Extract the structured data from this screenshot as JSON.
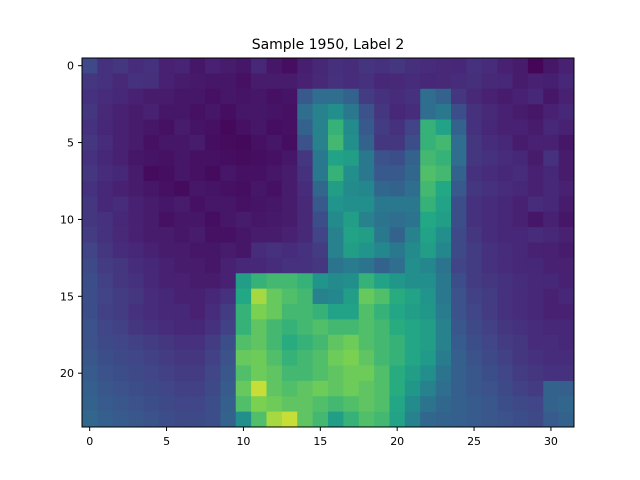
{
  "chart_data": {
    "type": "heatmap",
    "title": "Sample 1950, Label 2",
    "xlabel": "",
    "ylabel": "",
    "n_cols": 32,
    "n_rows": 24,
    "xlim": [
      -0.5,
      31.5
    ],
    "ylim": [
      23.5,
      -0.5
    ],
    "x_ticks": [
      0,
      5,
      10,
      15,
      20,
      25,
      30
    ],
    "y_ticks": [
      0,
      5,
      10,
      15,
      20
    ],
    "grid": false,
    "colormap": "viridis",
    "value_range": [
      0,
      1
    ],
    "values": [
      [
        0.27,
        0.18,
        0.2,
        0.16,
        0.18,
        0.12,
        0.13,
        0.08,
        0.12,
        0.1,
        0.08,
        0.14,
        0.08,
        0.05,
        0.11,
        0.14,
        0.17,
        0.16,
        0.19,
        0.18,
        0.2,
        0.17,
        0.16,
        0.15,
        0.14,
        0.18,
        0.16,
        0.12,
        0.1,
        0.02,
        0.08,
        0.12
      ],
      [
        0.2,
        0.18,
        0.15,
        0.18,
        0.17,
        0.12,
        0.1,
        0.09,
        0.08,
        0.08,
        0.06,
        0.1,
        0.1,
        0.1,
        0.12,
        0.15,
        0.18,
        0.16,
        0.18,
        0.14,
        0.15,
        0.16,
        0.14,
        0.15,
        0.16,
        0.17,
        0.15,
        0.14,
        0.1,
        0.12,
        0.11,
        0.14
      ],
      [
        0.18,
        0.16,
        0.14,
        0.12,
        0.1,
        0.1,
        0.08,
        0.08,
        0.06,
        0.08,
        0.07,
        0.08,
        0.06,
        0.07,
        0.35,
        0.45,
        0.45,
        0.4,
        0.22,
        0.18,
        0.16,
        0.18,
        0.45,
        0.4,
        0.2,
        0.15,
        0.12,
        0.1,
        0.12,
        0.14,
        0.08,
        0.12
      ],
      [
        0.2,
        0.15,
        0.12,
        0.1,
        0.12,
        0.08,
        0.08,
        0.06,
        0.08,
        0.05,
        0.08,
        0.08,
        0.07,
        0.06,
        0.45,
        0.55,
        0.62,
        0.5,
        0.32,
        0.2,
        0.14,
        0.16,
        0.45,
        0.5,
        0.3,
        0.18,
        0.15,
        0.12,
        0.1,
        0.08,
        0.12,
        0.14
      ],
      [
        0.18,
        0.14,
        0.12,
        0.1,
        0.08,
        0.06,
        0.1,
        0.07,
        0.06,
        0.03,
        0.06,
        0.08,
        0.05,
        0.06,
        0.4,
        0.55,
        0.78,
        0.6,
        0.35,
        0.22,
        0.18,
        0.25,
        0.78,
        0.72,
        0.4,
        0.18,
        0.14,
        0.12,
        0.12,
        0.1,
        0.14,
        0.12
      ],
      [
        0.2,
        0.16,
        0.12,
        0.1,
        0.06,
        0.08,
        0.08,
        0.1,
        0.05,
        0.04,
        0.03,
        0.06,
        0.08,
        0.05,
        0.32,
        0.55,
        0.8,
        0.62,
        0.4,
        0.2,
        0.2,
        0.3,
        0.78,
        0.8,
        0.45,
        0.2,
        0.16,
        0.14,
        0.1,
        0.12,
        0.12,
        0.08
      ],
      [
        0.18,
        0.14,
        0.12,
        0.08,
        0.07,
        0.06,
        0.08,
        0.06,
        0.06,
        0.05,
        0.04,
        0.05,
        0.06,
        0.08,
        0.2,
        0.5,
        0.72,
        0.7,
        0.5,
        0.32,
        0.3,
        0.4,
        0.8,
        0.78,
        0.45,
        0.2,
        0.18,
        0.16,
        0.14,
        0.1,
        0.18,
        0.1
      ],
      [
        0.2,
        0.16,
        0.14,
        0.1,
        0.04,
        0.05,
        0.08,
        0.06,
        0.04,
        0.08,
        0.06,
        0.06,
        0.08,
        0.1,
        0.18,
        0.5,
        0.78,
        0.62,
        0.5,
        0.35,
        0.35,
        0.42,
        0.82,
        0.8,
        0.4,
        0.18,
        0.16,
        0.14,
        0.16,
        0.12,
        0.14,
        0.1
      ],
      [
        0.18,
        0.14,
        0.12,
        0.1,
        0.08,
        0.06,
        0.04,
        0.08,
        0.07,
        0.06,
        0.05,
        0.08,
        0.06,
        0.1,
        0.16,
        0.42,
        0.7,
        0.6,
        0.58,
        0.42,
        0.4,
        0.45,
        0.8,
        0.75,
        0.35,
        0.2,
        0.18,
        0.16,
        0.14,
        0.12,
        0.14,
        0.12
      ],
      [
        0.2,
        0.14,
        0.16,
        0.12,
        0.1,
        0.08,
        0.1,
        0.06,
        0.08,
        0.08,
        0.06,
        0.07,
        0.08,
        0.1,
        0.15,
        0.35,
        0.65,
        0.62,
        0.62,
        0.5,
        0.5,
        0.5,
        0.78,
        0.72,
        0.3,
        0.18,
        0.16,
        0.14,
        0.12,
        0.16,
        0.14,
        0.1
      ],
      [
        0.2,
        0.18,
        0.14,
        0.12,
        0.1,
        0.06,
        0.08,
        0.08,
        0.05,
        0.08,
        0.1,
        0.08,
        0.09,
        0.1,
        0.15,
        0.3,
        0.6,
        0.7,
        0.55,
        0.48,
        0.45,
        0.48,
        0.75,
        0.7,
        0.3,
        0.18,
        0.16,
        0.14,
        0.12,
        0.08,
        0.12,
        0.08
      ],
      [
        0.22,
        0.18,
        0.15,
        0.12,
        0.1,
        0.1,
        0.08,
        0.1,
        0.06,
        0.06,
        0.08,
        0.1,
        0.1,
        0.12,
        0.15,
        0.25,
        0.55,
        0.72,
        0.7,
        0.5,
        0.4,
        0.55,
        0.72,
        0.62,
        0.28,
        0.2,
        0.16,
        0.14,
        0.14,
        0.16,
        0.14,
        0.12
      ],
      [
        0.25,
        0.2,
        0.16,
        0.14,
        0.12,
        0.1,
        0.1,
        0.08,
        0.08,
        0.1,
        0.08,
        0.16,
        0.18,
        0.16,
        0.18,
        0.22,
        0.55,
        0.7,
        0.65,
        0.58,
        0.5,
        0.6,
        0.7,
        0.58,
        0.28,
        0.22,
        0.18,
        0.16,
        0.14,
        0.12,
        0.12,
        0.1
      ],
      [
        0.28,
        0.22,
        0.2,
        0.16,
        0.14,
        0.12,
        0.1,
        0.1,
        0.08,
        0.12,
        0.14,
        0.14,
        0.16,
        0.18,
        0.18,
        0.2,
        0.48,
        0.52,
        0.48,
        0.4,
        0.45,
        0.62,
        0.58,
        0.48,
        0.25,
        0.22,
        0.18,
        0.16,
        0.14,
        0.14,
        0.12,
        0.12
      ],
      [
        0.3,
        0.24,
        0.2,
        0.18,
        0.14,
        0.12,
        0.12,
        0.1,
        0.1,
        0.12,
        0.7,
        0.78,
        0.8,
        0.8,
        0.78,
        0.65,
        0.6,
        0.62,
        0.78,
        0.72,
        0.66,
        0.62,
        0.62,
        0.5,
        0.3,
        0.22,
        0.2,
        0.18,
        0.16,
        0.14,
        0.14,
        0.12
      ],
      [
        0.3,
        0.25,
        0.22,
        0.2,
        0.16,
        0.14,
        0.12,
        0.12,
        0.14,
        0.18,
        0.75,
        0.92,
        0.85,
        0.82,
        0.8,
        0.55,
        0.58,
        0.7,
        0.85,
        0.82,
        0.76,
        0.72,
        0.65,
        0.5,
        0.32,
        0.24,
        0.22,
        0.18,
        0.16,
        0.14,
        0.12,
        0.14
      ],
      [
        0.3,
        0.24,
        0.22,
        0.18,
        0.16,
        0.14,
        0.14,
        0.12,
        0.16,
        0.22,
        0.78,
        0.88,
        0.85,
        0.8,
        0.8,
        0.78,
        0.72,
        0.72,
        0.82,
        0.78,
        0.74,
        0.7,
        0.66,
        0.52,
        0.32,
        0.26,
        0.22,
        0.18,
        0.16,
        0.14,
        0.12,
        0.12
      ],
      [
        0.32,
        0.26,
        0.24,
        0.2,
        0.18,
        0.16,
        0.14,
        0.14,
        0.18,
        0.24,
        0.78,
        0.84,
        0.8,
        0.78,
        0.8,
        0.82,
        0.8,
        0.8,
        0.82,
        0.8,
        0.76,
        0.74,
        0.7,
        0.55,
        0.34,
        0.28,
        0.24,
        0.2,
        0.18,
        0.16,
        0.14,
        0.14
      ],
      [
        0.32,
        0.28,
        0.26,
        0.24,
        0.22,
        0.2,
        0.18,
        0.18,
        0.22,
        0.3,
        0.82,
        0.84,
        0.8,
        0.76,
        0.78,
        0.8,
        0.84,
        0.86,
        0.82,
        0.8,
        0.78,
        0.74,
        0.7,
        0.55,
        0.36,
        0.3,
        0.26,
        0.22,
        0.2,
        0.16,
        0.16,
        0.14
      ],
      [
        0.34,
        0.3,
        0.28,
        0.26,
        0.24,
        0.22,
        0.2,
        0.2,
        0.24,
        0.32,
        0.85,
        0.86,
        0.82,
        0.78,
        0.8,
        0.82,
        0.86,
        0.88,
        0.84,
        0.8,
        0.78,
        0.74,
        0.68,
        0.52,
        0.38,
        0.32,
        0.28,
        0.24,
        0.2,
        0.18,
        0.16,
        0.16
      ],
      [
        0.36,
        0.32,
        0.3,
        0.28,
        0.26,
        0.24,
        0.22,
        0.22,
        0.26,
        0.34,
        0.82,
        0.86,
        0.84,
        0.8,
        0.8,
        0.82,
        0.84,
        0.86,
        0.86,
        0.82,
        0.76,
        0.7,
        0.62,
        0.48,
        0.38,
        0.34,
        0.3,
        0.26,
        0.22,
        0.2,
        0.18,
        0.18
      ],
      [
        0.38,
        0.34,
        0.32,
        0.3,
        0.28,
        0.26,
        0.24,
        0.24,
        0.28,
        0.36,
        0.85,
        0.95,
        0.84,
        0.82,
        0.84,
        0.86,
        0.84,
        0.86,
        0.84,
        0.82,
        0.76,
        0.66,
        0.55,
        0.45,
        0.38,
        0.34,
        0.32,
        0.28,
        0.24,
        0.22,
        0.4,
        0.38
      ],
      [
        0.4,
        0.36,
        0.34,
        0.32,
        0.3,
        0.28,
        0.26,
        0.26,
        0.3,
        0.38,
        0.82,
        0.88,
        0.86,
        0.84,
        0.84,
        0.82,
        0.8,
        0.82,
        0.84,
        0.82,
        0.74,
        0.6,
        0.48,
        0.42,
        0.38,
        0.36,
        0.34,
        0.3,
        0.28,
        0.26,
        0.4,
        0.42
      ],
      [
        0.42,
        0.38,
        0.36,
        0.34,
        0.32,
        0.3,
        0.28,
        0.28,
        0.3,
        0.4,
        0.62,
        0.82,
        0.92,
        0.95,
        0.84,
        0.8,
        0.7,
        0.78,
        0.82,
        0.8,
        0.72,
        0.55,
        0.42,
        0.4,
        0.38,
        0.36,
        0.34,
        0.32,
        0.3,
        0.28,
        0.36,
        0.4
      ]
    ]
  }
}
